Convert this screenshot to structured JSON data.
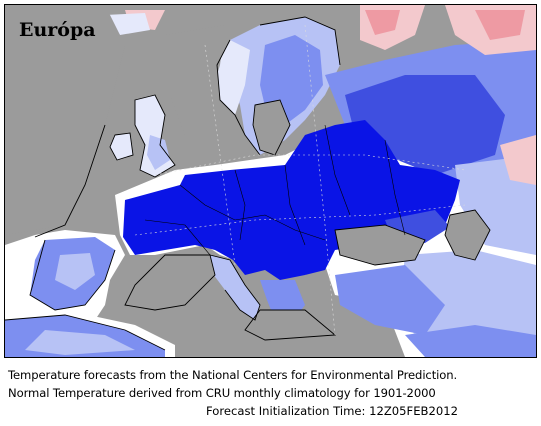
{
  "map": {
    "title": "Európa",
    "colors": {
      "water": "#9b9b9b",
      "no_data": "#ffffff",
      "strong_cold": "#0a14e6",
      "cold": "#3f4fe0",
      "mild_cold": "#7d8ff0",
      "slight_cold": "#b7c2f5",
      "near_normal": "#e5e9fb",
      "slight_warm": "#f3c9cd",
      "warm": "#ee9aa3",
      "coastline": "#000000"
    }
  },
  "caption": {
    "line1": "Temperature  forecasts from the National Centers for Environmental Prediction.",
    "line2": "Normal Temperature derived from CRU monthly climatology for 1901-2000",
    "line3": "Forecast Initialization Time: 12Z05FEB2012"
  }
}
